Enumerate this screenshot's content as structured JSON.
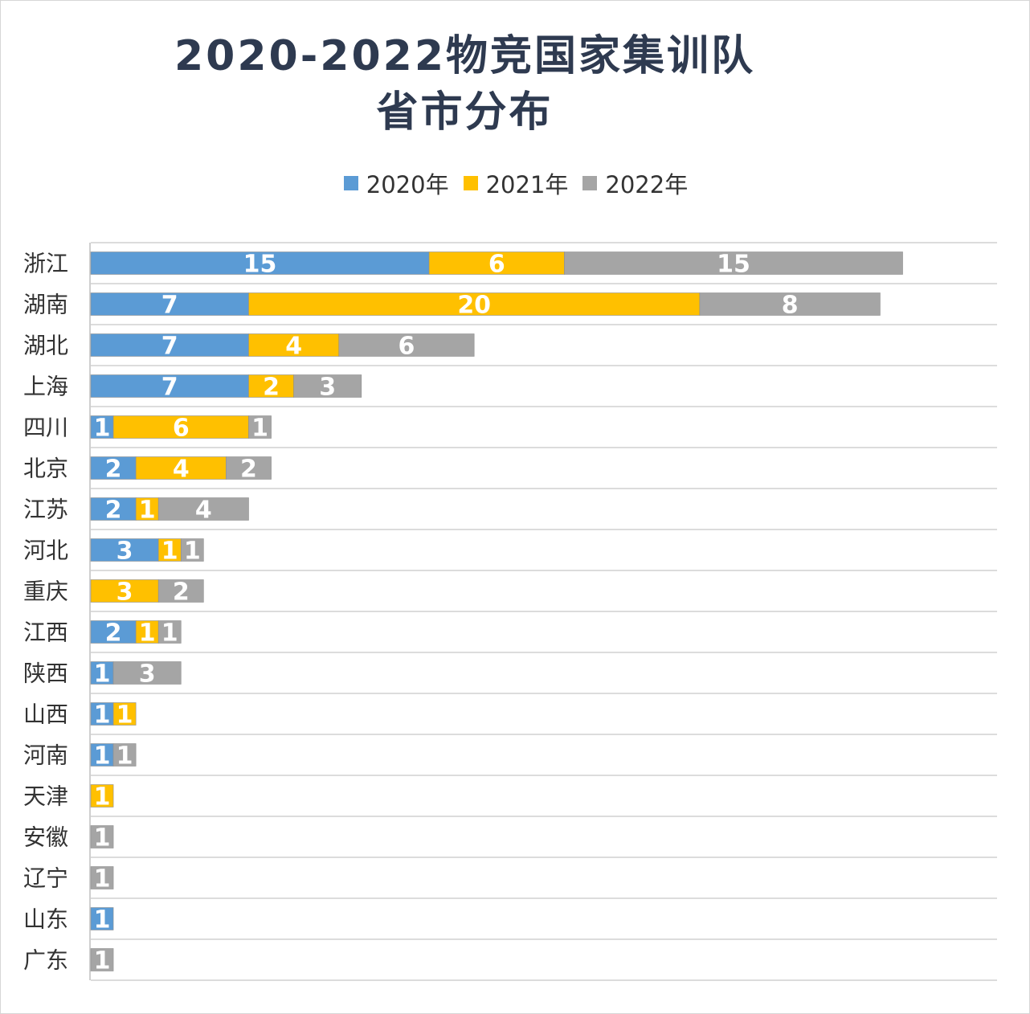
{
  "chart_data": {
    "type": "bar",
    "orientation": "horizontal",
    "stacked": true,
    "title": [
      "2020-2022物竞国家集训队",
      "省市分布"
    ],
    "categories": [
      "浙江",
      "湖南",
      "湖北",
      "上海",
      "四川",
      "北京",
      "江苏",
      "河北",
      "重庆",
      "江西",
      "陕西",
      "山西",
      "河南",
      "天津",
      "安徽",
      "辽宁",
      "山东",
      "广东"
    ],
    "series": [
      {
        "name": "2020年",
        "color": "#5b9bd5",
        "values": [
          15,
          7,
          7,
          7,
          1,
          2,
          2,
          3,
          0,
          2,
          1,
          1,
          1,
          0,
          0,
          0,
          1,
          0
        ]
      },
      {
        "name": "2021年",
        "color": "#ffc000",
        "values": [
          6,
          20,
          4,
          2,
          6,
          4,
          1,
          1,
          3,
          1,
          0,
          1,
          0,
          1,
          0,
          0,
          0,
          0
        ]
      },
      {
        "name": "2022年",
        "color": "#a5a5a5",
        "values": [
          15,
          8,
          6,
          3,
          1,
          2,
          4,
          1,
          2,
          1,
          3,
          0,
          1,
          0,
          1,
          1,
          0,
          1
        ]
      }
    ],
    "legend_position": "top",
    "grid": true,
    "data_labels": true
  }
}
